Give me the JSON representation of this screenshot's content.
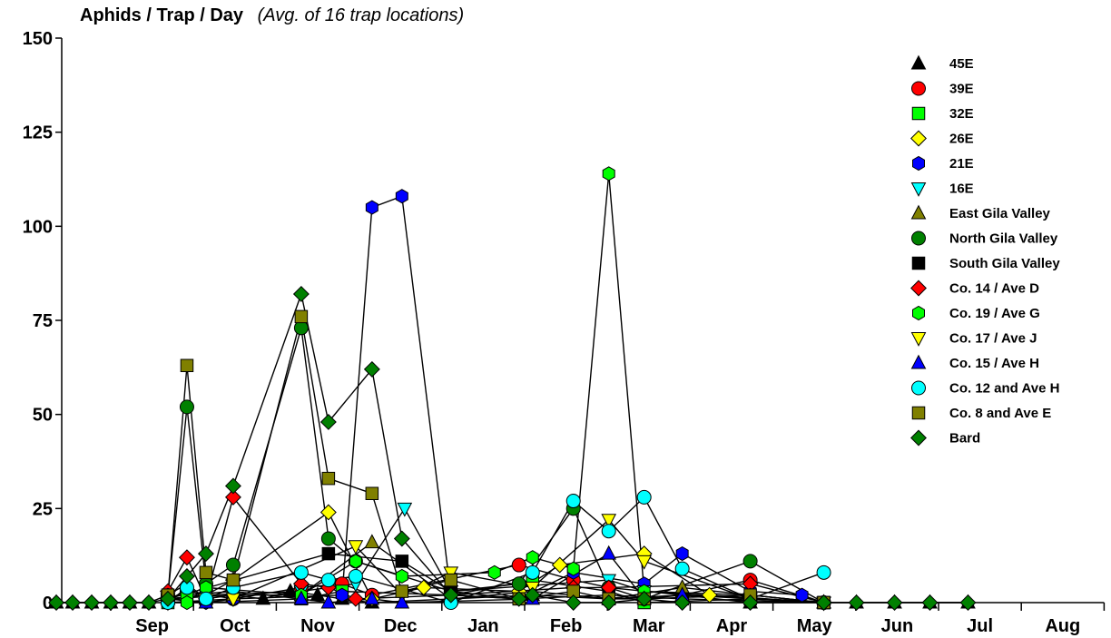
{
  "chart_data": {
    "type": "scatter",
    "title": "Aphids / Trap / Day",
    "subtitle": "(Avg. of 16 trap locations)",
    "ylim": [
      0,
      150
    ],
    "yticks": [
      0,
      25,
      50,
      75,
      100,
      125,
      150
    ],
    "months": [
      "Sep",
      "Oct",
      "Nov",
      "Dec",
      "Jan",
      "Feb",
      "Mar",
      "Apr",
      "May",
      "Jun",
      "Jul",
      "Aug"
    ],
    "xlim_days": [
      0,
      365
    ],
    "grid": false,
    "legend_position": "right",
    "series": [
      {
        "name": "45E",
        "marker": "triangle-up",
        "color": "#000000",
        "points": [
          [
            -20,
            0
          ],
          [
            -14,
            0
          ],
          [
            -7,
            0
          ],
          [
            0,
            0
          ],
          [
            7,
            0
          ],
          [
            14,
            0
          ],
          [
            21,
            2
          ],
          [
            28,
            5
          ],
          [
            35,
            1
          ],
          [
            45,
            2
          ],
          [
            56,
            1
          ],
          [
            66,
            3
          ],
          [
            76,
            2
          ],
          [
            85,
            1
          ],
          [
            96,
            0
          ],
          [
            125,
            1
          ],
          [
            155,
            2
          ],
          [
            183,
            1
          ],
          [
            210,
            2
          ],
          [
            235,
            0
          ],
          [
            262,
            0
          ],
          [
            274,
            0
          ],
          [
            288,
            0
          ],
          [
            301,
            0
          ],
          [
            315,
            0
          ]
        ]
      },
      {
        "name": "39E",
        "marker": "circle",
        "color": "#ff0000",
        "points": [
          [
            21,
            1
          ],
          [
            28,
            3
          ],
          [
            45,
            1
          ],
          [
            70,
            4
          ],
          [
            85,
            5
          ],
          [
            96,
            2
          ],
          [
            150,
            10
          ],
          [
            170,
            6
          ],
          [
            183,
            4
          ],
          [
            210,
            2
          ],
          [
            235,
            6
          ],
          [
            262,
            0
          ]
        ]
      },
      {
        "name": "32E",
        "marker": "square",
        "color": "#00ff00",
        "points": [
          [
            21,
            0
          ],
          [
            28,
            2
          ],
          [
            45,
            3
          ],
          [
            70,
            1
          ],
          [
            85,
            3
          ],
          [
            125,
            2
          ],
          [
            155,
            6
          ],
          [
            183,
            3
          ],
          [
            196,
            0
          ],
          [
            235,
            1
          ],
          [
            262,
            0
          ]
        ]
      },
      {
        "name": "26E",
        "marker": "diamond",
        "color": "#ffff00",
        "points": [
          [
            21,
            1
          ],
          [
            35,
            2
          ],
          [
            45,
            6
          ],
          [
            80,
            24
          ],
          [
            96,
            1
          ],
          [
            115,
            4
          ],
          [
            150,
            3
          ],
          [
            165,
            10
          ],
          [
            196,
            13
          ],
          [
            220,
            2
          ],
          [
            262,
            0
          ]
        ]
      },
      {
        "name": "21E",
        "marker": "hexagon",
        "color": "#0000ff",
        "points": [
          [
            21,
            0
          ],
          [
            35,
            0
          ],
          [
            45,
            1
          ],
          [
            85,
            2
          ],
          [
            96,
            105
          ],
          [
            107,
            108
          ],
          [
            125,
            2
          ],
          [
            150,
            1
          ],
          [
            170,
            8
          ],
          [
            196,
            5
          ],
          [
            210,
            13
          ],
          [
            235,
            3
          ],
          [
            254,
            2
          ],
          [
            262,
            0
          ]
        ]
      },
      {
        "name": "16E",
        "marker": "triangle-down",
        "color": "#00ffff",
        "points": [
          [
            21,
            1
          ],
          [
            35,
            2
          ],
          [
            70,
            3
          ],
          [
            90,
            5
          ],
          [
            108,
            25
          ],
          [
            125,
            3
          ],
          [
            183,
            6
          ],
          [
            196,
            3
          ],
          [
            262,
            0
          ]
        ]
      },
      {
        "name": "East Gila Valley",
        "marker": "triangle-up",
        "color": "#808000",
        "points": [
          [
            21,
            1
          ],
          [
            45,
            2
          ],
          [
            70,
            2
          ],
          [
            96,
            16
          ],
          [
            125,
            1
          ],
          [
            155,
            3
          ],
          [
            183,
            1
          ],
          [
            210,
            4
          ],
          [
            235,
            2
          ],
          [
            262,
            0
          ]
        ]
      },
      {
        "name": "North Gila Valley",
        "marker": "circle",
        "color": "#008000",
        "points": [
          [
            21,
            2
          ],
          [
            28,
            52
          ],
          [
            35,
            5
          ],
          [
            45,
            10
          ],
          [
            70,
            73
          ],
          [
            80,
            17
          ],
          [
            90,
            11
          ],
          [
            125,
            3
          ],
          [
            150,
            5
          ],
          [
            170,
            25
          ],
          [
            183,
            4
          ],
          [
            196,
            1
          ],
          [
            235,
            11
          ],
          [
            262,
            0
          ]
        ]
      },
      {
        "name": "South Gila Valley",
        "marker": "square",
        "color": "#000000",
        "points": [
          [
            21,
            1
          ],
          [
            80,
            13
          ],
          [
            107,
            11
          ],
          [
            125,
            3
          ],
          [
            150,
            1
          ],
          [
            183,
            2
          ],
          [
            210,
            1
          ],
          [
            262,
            0
          ]
        ]
      },
      {
        "name": "Co. 14 / Ave D",
        "marker": "diamond",
        "color": "#ff0000",
        "points": [
          [
            21,
            3
          ],
          [
            28,
            12
          ],
          [
            35,
            1
          ],
          [
            45,
            28
          ],
          [
            70,
            5
          ],
          [
            80,
            4
          ],
          [
            90,
            1
          ],
          [
            125,
            2
          ],
          [
            170,
            4
          ],
          [
            183,
            4
          ],
          [
            235,
            5
          ],
          [
            262,
            0
          ]
        ]
      },
      {
        "name": "Co. 19 / Ave G",
        "marker": "hexagon",
        "color": "#00ff00",
        "points": [
          [
            21,
            2
          ],
          [
            28,
            0
          ],
          [
            35,
            4
          ],
          [
            70,
            2
          ],
          [
            90,
            11
          ],
          [
            107,
            7
          ],
          [
            141,
            8
          ],
          [
            155,
            12
          ],
          [
            170,
            9
          ],
          [
            183,
            114
          ],
          [
            196,
            3
          ],
          [
            235,
            2
          ],
          [
            262,
            0
          ]
        ]
      },
      {
        "name": "Co. 17 / Ave J",
        "marker": "triangle-down",
        "color": "#ffff00",
        "points": [
          [
            21,
            0
          ],
          [
            45,
            1
          ],
          [
            90,
            15
          ],
          [
            107,
            2
          ],
          [
            125,
            8
          ],
          [
            155,
            4
          ],
          [
            183,
            22
          ],
          [
            196,
            11
          ],
          [
            235,
            1
          ],
          [
            262,
            0
          ]
        ]
      },
      {
        "name": "Co. 15 / Ave H",
        "marker": "triangle-up",
        "color": "#0000ff",
        "points": [
          [
            21,
            1
          ],
          [
            35,
            0
          ],
          [
            70,
            1
          ],
          [
            80,
            0
          ],
          [
            96,
            1
          ],
          [
            107,
            0
          ],
          [
            155,
            1
          ],
          [
            183,
            13
          ],
          [
            196,
            1
          ],
          [
            210,
            2
          ],
          [
            262,
            0
          ]
        ]
      },
      {
        "name": "Co. 12 and Ave H",
        "marker": "circle",
        "color": "#00ffff",
        "points": [
          [
            21,
            0
          ],
          [
            28,
            4
          ],
          [
            35,
            1
          ],
          [
            45,
            4
          ],
          [
            70,
            8
          ],
          [
            80,
            6
          ],
          [
            90,
            7
          ],
          [
            125,
            0
          ],
          [
            155,
            8
          ],
          [
            170,
            27
          ],
          [
            183,
            19
          ],
          [
            196,
            28
          ],
          [
            210,
            9
          ],
          [
            235,
            1
          ],
          [
            262,
            8
          ]
        ]
      },
      {
        "name": "Co. 8 and Ave E",
        "marker": "square",
        "color": "#808000",
        "points": [
          [
            21,
            2
          ],
          [
            28,
            63
          ],
          [
            35,
            8
          ],
          [
            45,
            6
          ],
          [
            70,
            76
          ],
          [
            80,
            33
          ],
          [
            96,
            29
          ],
          [
            107,
            3
          ],
          [
            125,
            6
          ],
          [
            150,
            1
          ],
          [
            170,
            3
          ],
          [
            183,
            1
          ],
          [
            196,
            1
          ],
          [
            235,
            2
          ],
          [
            262,
            0
          ]
        ]
      },
      {
        "name": "Bard",
        "marker": "diamond",
        "color": "#008000",
        "points": [
          [
            -20,
            0
          ],
          [
            -14,
            0
          ],
          [
            -7,
            0
          ],
          [
            0,
            0
          ],
          [
            7,
            0
          ],
          [
            14,
            0
          ],
          [
            21,
            1
          ],
          [
            28,
            7
          ],
          [
            35,
            13
          ],
          [
            45,
            31
          ],
          [
            70,
            82
          ],
          [
            80,
            48
          ],
          [
            96,
            62
          ],
          [
            107,
            17
          ],
          [
            125,
            2
          ],
          [
            150,
            1
          ],
          [
            155,
            2
          ],
          [
            170,
            0
          ],
          [
            183,
            0
          ],
          [
            196,
            1
          ],
          [
            210,
            0
          ],
          [
            235,
            0
          ],
          [
            262,
            0
          ],
          [
            274,
            0
          ],
          [
            288,
            0
          ],
          [
            301,
            0
          ],
          [
            315,
            0
          ]
        ]
      }
    ]
  }
}
